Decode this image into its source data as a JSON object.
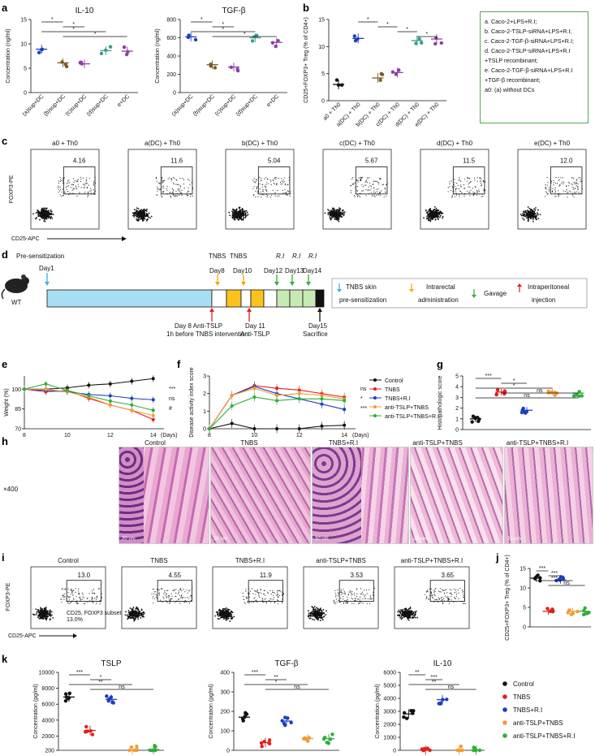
{
  "panel_labels": {
    "a": "a",
    "b": "b",
    "c": "c",
    "d": "d",
    "e": "e",
    "f": "f",
    "g": "g",
    "h": "h",
    "i": "i",
    "j": "j",
    "k": "k"
  },
  "legend_box": [
    "a. Caco-2+LPS+R.I;",
    "b. Caco-2-TSLP-siRNA+LPS+R.I;",
    "c. Caco-2-TGF-β-siRNA+LPS+R.I;",
    "d. Caco-2-TSLP-siRNA+LPS+R.I",
    "   +TSLP recombinant;",
    "e. Caco-2-TGF-β-siRNA+LPS+R.I",
    "   +TGF-β recombinant;",
    "a0: (a) without DCs"
  ],
  "panel_c": {
    "titles": [
      "a0 + Th0",
      "a(DC) + Th0",
      "b(DC) + Th0",
      "c(DC) + Th0",
      "d(DC) + Th0",
      "e(DC) + Th0"
    ],
    "percents": [
      "4.16",
      "11.6",
      "5.04",
      "5.67",
      "11.5",
      "12.0"
    ],
    "ylabel": "FOXP3-PE",
    "xlabel": "CD25-APC",
    "ticks": [
      "0",
      "10²",
      "10³",
      "10⁴",
      "10⁵"
    ]
  },
  "panel_d": {
    "presens": "Pre-sensitization",
    "day1": "Day1",
    "tnbs1": "TNBS",
    "day8": "Day8",
    "tnbs2": "TNBS",
    "day10": "Day10",
    "ri": "R.I",
    "day12": "Day12",
    "day13": "Day13",
    "day14": "Day14",
    "anti1a": "Day 8 Anti-TSLP",
    "anti1b": "1h before TNBS intervention",
    "anti2a": "Day 11",
    "anti2b": "Anti-TSLP",
    "day15": "Day15",
    "sac": "Sacrifice",
    "wt": "WT",
    "leg_skin": "TNBS skin",
    "leg_skin2": "pre-sensitization",
    "leg_intra": "Intrarectal",
    "leg_intra2": "administration",
    "leg_gav": "Gavage",
    "leg_ip": "Intraperitoneal",
    "leg_ip2": "injection"
  },
  "histology": {
    "titles": [
      "Control",
      "TNBS",
      "TNBS+R.I",
      "anti-TSLP+TNBS",
      "anti-TSLP+TNBS+R.I"
    ],
    "mag": "×400",
    "scale": "20 um"
  },
  "panel_i": {
    "titles": [
      "Control",
      "TNBS",
      "TNBS+R.I",
      "anti-TSLP+TNBS",
      "anti-TSLP+TNBS+R.I"
    ],
    "percents": [
      "13.0",
      "4.55",
      "11.9",
      "3.53",
      "3.65"
    ],
    "subset": "CD25, FOXP3 subset",
    "subset_val": "13.0%",
    "ylabel": "FOXP3-PE",
    "xlabel": "CD25-APC"
  },
  "legend_groups": [
    "Control",
    "TNBS",
    "TNBS+R.I",
    "anti-TSLP+TNBS",
    "anti-TSLP+TNBS+R.I"
  ],
  "colors": {
    "control": "#111111",
    "tnbs": "#e0201b",
    "ri": "#1c3fbf",
    "anti": "#f39c34",
    "antiri": "#2fae3a",
    "purple": "#8e3fa6",
    "brown": "#7a5a2a",
    "teal": "#3c9b8c"
  },
  "chart_data": [
    {
      "id": "a1",
      "type": "scatter",
      "title": "IL-10",
      "ylabel": "Concentration (ng/ml)",
      "ylim": [
        0,
        15
      ],
      "yticks": [
        0,
        5,
        10,
        15
      ],
      "categories": [
        "(a)sup+DC",
        "(b)sup+DC",
        "(c)sup+DC",
        "(d)sup+DC",
        "e+DC"
      ],
      "means": [
        8.9,
        6.1,
        5.9,
        8.6,
        8.5
      ],
      "sig": [
        "*",
        "*",
        "*",
        "*"
      ]
    },
    {
      "id": "a2",
      "type": "scatter",
      "title": "TGF-β",
      "ylabel": "Concentration (ng/ml)",
      "ylim": [
        0,
        800
      ],
      "yticks": [
        0,
        200,
        400,
        600,
        800
      ],
      "categories": [
        "(a)sup+DC",
        "(b)sup+DC",
        "(c)sup+DC",
        "(d)sup+DC",
        "e+DC"
      ],
      "means": [
        610,
        305,
        280,
        600,
        550
      ],
      "sig": [
        "*",
        "*",
        "*",
        "*"
      ]
    },
    {
      "id": "b",
      "type": "scatter",
      "title": "",
      "ylabel": "CD25+FOXP3+ Treg (% of CD4+)",
      "ylim": [
        0,
        15
      ],
      "yticks": [
        0,
        5,
        10,
        15
      ],
      "categories": [
        "a0 + Th0",
        "a(DC) + Th0",
        "b(DC) + Th0",
        "c(DC) + Th0",
        "d(DC) + Th0",
        "e(DC) + Th0"
      ],
      "means": [
        3.0,
        11.5,
        4.2,
        5.2,
        11.1,
        11.4
      ],
      "sig": [
        "*",
        "*",
        "*",
        "*",
        "*"
      ]
    },
    {
      "id": "e",
      "type": "line",
      "ylabel": "Weight (%)",
      "xlabel": "(Days)",
      "ylim": [
        70,
        110
      ],
      "yticks": [
        70,
        85,
        100
      ],
      "x": [
        8,
        9,
        10,
        11,
        12,
        13,
        14
      ],
      "xticks": [
        8,
        10,
        12,
        14
      ],
      "series": [
        {
          "name": "Control",
          "values": [
            100,
            100,
            101,
            103,
            104,
            106,
            108
          ]
        },
        {
          "name": "TNBS",
          "values": [
            100,
            98,
            99,
            93,
            88,
            84,
            77
          ]
        },
        {
          "name": "TNBS+R.I",
          "values": [
            100,
            99,
            98,
            96,
            95,
            93,
            92
          ]
        },
        {
          "name": "anti-TSLP+TNBS",
          "values": [
            100,
            100,
            98,
            94,
            88,
            84,
            80
          ]
        },
        {
          "name": "anti-TSLP+TNBS+R.I",
          "values": [
            100,
            104,
            99,
            95,
            91,
            88,
            84
          ]
        }
      ],
      "sig": [
        "***",
        "ns",
        "#"
      ]
    },
    {
      "id": "f",
      "type": "line",
      "ylabel": "Disease activity index score",
      "xlabel": "(Days)",
      "ylim": [
        0,
        3
      ],
      "yticks": [
        0,
        1,
        2,
        3
      ],
      "x": [
        8,
        9,
        10,
        11,
        12,
        13,
        14
      ],
      "xticks": [
        8,
        10,
        12,
        14
      ],
      "series": [
        {
          "name": "Control",
          "values": [
            0,
            0.3,
            0,
            0,
            0,
            0.15,
            0.2
          ]
        },
        {
          "name": "TNBS",
          "values": [
            0,
            1.9,
            2.45,
            2.3,
            2.2,
            2.0,
            1.8
          ]
        },
        {
          "name": "TNBS+R.I",
          "values": [
            0,
            1.9,
            2.4,
            2.0,
            1.7,
            1.4,
            1.1
          ]
        },
        {
          "name": "anti-TSLP+TNBS",
          "values": [
            0,
            1.9,
            2.3,
            1.9,
            2.0,
            1.9,
            1.7
          ]
        },
        {
          "name": "anti-TSLP+TNBS+R.I",
          "values": [
            0,
            1.3,
            1.8,
            1.6,
            1.7,
            1.7,
            1.6
          ]
        }
      ],
      "sig": [
        "ns",
        "*",
        "***"
      ]
    },
    {
      "id": "g",
      "type": "scatter",
      "ylabel": "Histopathologic score",
      "ylim": [
        0,
        5
      ],
      "yticks": [
        0,
        1,
        2,
        3,
        4,
        5
      ],
      "categories": [
        "Control",
        "TNBS",
        "TNBS+R.I",
        "anti-TSLP+TNBS",
        "anti-TSLP+TNBS+R.I"
      ],
      "means": [
        1.0,
        3.5,
        1.8,
        3.5,
        3.4
      ],
      "sig": [
        "***",
        "*",
        "*",
        "ns",
        "ns"
      ]
    },
    {
      "id": "j",
      "type": "scatter",
      "ylabel": "CD25+FOXP3+ Treg (% of CD4+)",
      "ylim": [
        0,
        15
      ],
      "yticks": [
        0,
        5,
        10,
        15
      ],
      "categories": [
        "Control",
        "TNBS",
        "TNBS+R.I",
        "anti-TSLP+TNBS",
        "anti-TSLP+TNBS+R.I"
      ],
      "means": [
        12.5,
        4.0,
        12.0,
        4.0,
        4.0
      ],
      "sig": [
        "***",
        "***",
        "***",
        "ns"
      ]
    },
    {
      "id": "k1",
      "type": "scatter",
      "title": "TSLP",
      "ylabel": "Concentration (pg/ml)",
      "ylim": [
        200,
        10000
      ],
      "yticks": [
        200,
        2000,
        4000,
        6000,
        8000,
        10000
      ],
      "categories": [
        "Control",
        "TNBS",
        "TNBS+R.I",
        "anti-TSLP+TNBS",
        "anti-TSLP+TNBS+R.I"
      ],
      "means": [
        6900,
        2700,
        6600,
        250,
        300
      ],
      "sig": [
        "***",
        "*",
        "**",
        "ns"
      ]
    },
    {
      "id": "k2",
      "type": "scatter",
      "title": "TGF-β",
      "ylabel": "Concentration (pg/ml)",
      "ylim": [
        0,
        400
      ],
      "yticks": [
        0,
        100,
        200,
        300,
        400
      ],
      "categories": [
        "Control",
        "TNBS",
        "TNBS+R.I",
        "anti-TSLP+TNBS",
        "anti-TSLP+TNBS+R.I"
      ],
      "means": [
        170,
        40,
        150,
        60,
        60
      ],
      "sig": [
        "***",
        "**",
        "*",
        "ns"
      ]
    },
    {
      "id": "k3",
      "type": "scatter",
      "title": "IL-10",
      "ylabel": "Concentration (pg/ml)",
      "ylim": [
        0,
        6000
      ],
      "yticks": [
        0,
        1000,
        2000,
        3000,
        4000,
        5000,
        6000
      ],
      "categories": [
        "Control",
        "TNBS",
        "TNBS+R.I",
        "anti-TSLP+TNBS",
        "anti-TSLP+TNBS+R.I"
      ],
      "means": [
        2800,
        20,
        3900,
        30,
        20
      ],
      "sig": [
        "**",
        "***",
        "**",
        "ns"
      ]
    }
  ]
}
